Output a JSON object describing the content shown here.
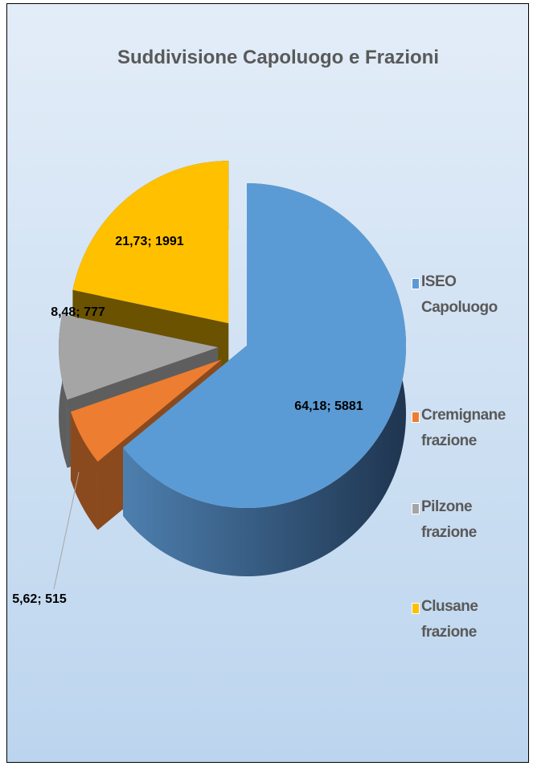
{
  "chart_data": {
    "type": "pie3d",
    "title": "Suddivisione Capoluogo e Frazioni",
    "categories": [
      "ISEO Capoluogo",
      "Cremignane frazione",
      "Pilzone frazione",
      "Clusane frazione"
    ],
    "values": [
      5881,
      515,
      777,
      1991
    ],
    "percentages": [
      64.18,
      5.62,
      8.48,
      21.73
    ],
    "value_labels": [
      "64,18; 5881",
      "5,62; 515",
      "8,48; 777",
      "21,73; 1991"
    ],
    "colors": [
      "#5b9bd5",
      "#ed7d31",
      "#a5a5a5",
      "#ffc000"
    ],
    "legend": "right"
  }
}
